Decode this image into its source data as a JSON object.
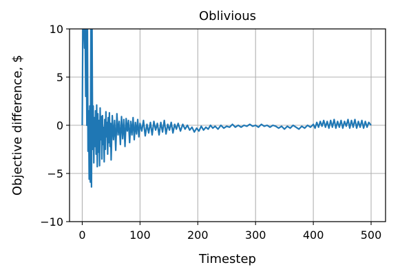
{
  "chart_data": {
    "type": "line",
    "title": "Oblivious",
    "xlabel": "Timestep",
    "ylabel": "Objective difference, $",
    "xlim": [
      -22,
      525
    ],
    "ylim": [
      -10,
      10
    ],
    "xticks": [
      0,
      100,
      200,
      300,
      400,
      500
    ],
    "yticks": [
      -10,
      -5,
      0,
      5,
      10
    ],
    "xtick_labels": [
      "0",
      "100",
      "200",
      "300",
      "400",
      "500"
    ],
    "ytick_labels": [
      "−10",
      "−5",
      "0",
      "5",
      "10"
    ],
    "grid": true,
    "line_color": "#1f77b4",
    "series": [
      {
        "values": [
          [
            0,
            0.0
          ],
          [
            1,
            10.0
          ],
          [
            2,
            10.0
          ],
          [
            3,
            10.0
          ],
          [
            4,
            8.0
          ],
          [
            5,
            10.0
          ],
          [
            6,
            3.0
          ],
          [
            7,
            10.0
          ],
          [
            8,
            0.0
          ],
          [
            9,
            10.0
          ],
          [
            10,
            -2.7
          ],
          [
            11,
            1.5
          ],
          [
            12,
            -5.6
          ],
          [
            13,
            2.0
          ],
          [
            14,
            -5.9
          ],
          [
            15,
            10.0
          ],
          [
            16,
            -6.4
          ],
          [
            17,
            10.0
          ],
          [
            18,
            -2.5
          ],
          [
            19,
            2.0
          ],
          [
            20,
            -3.9
          ],
          [
            21,
            0.8
          ],
          [
            22,
            -2.2
          ],
          [
            23,
            1.5
          ],
          [
            24,
            -3.0
          ],
          [
            25,
            2.1
          ],
          [
            26,
            -4.3
          ],
          [
            27,
            1.2
          ],
          [
            28,
            -2.8
          ],
          [
            29,
            0.5
          ],
          [
            30,
            -4.2
          ],
          [
            31,
            1.8
          ],
          [
            32,
            -1.5
          ],
          [
            33,
            0.9
          ],
          [
            34,
            -3.5
          ],
          [
            35,
            1.0
          ],
          [
            36,
            -2.0
          ],
          [
            37,
            -0.2
          ],
          [
            38,
            -3.8
          ],
          [
            39,
            0.6
          ],
          [
            40,
            -2.5
          ],
          [
            41,
            1.4
          ],
          [
            42,
            -1.2
          ],
          [
            43,
            0.3
          ],
          [
            44,
            -3.0
          ],
          [
            45,
            0.8
          ],
          [
            46,
            -1.8
          ],
          [
            47,
            1.3
          ],
          [
            48,
            -2.2
          ],
          [
            49,
            0.2
          ],
          [
            50,
            -3.6
          ],
          [
            52,
            1.0
          ],
          [
            54,
            -1.5
          ],
          [
            56,
            0.5
          ],
          [
            58,
            -2.6
          ],
          [
            60,
            1.2
          ],
          [
            62,
            -1.0
          ],
          [
            64,
            0.4
          ],
          [
            66,
            -2.0
          ],
          [
            68,
            0.9
          ],
          [
            70,
            -1.4
          ],
          [
            72,
            0.6
          ],
          [
            74,
            -2.2
          ],
          [
            76,
            0.7
          ],
          [
            78,
            -0.6
          ],
          [
            80,
            0.5
          ],
          [
            82,
            -1.8
          ],
          [
            84,
            0.4
          ],
          [
            86,
            -1.0
          ],
          [
            88,
            0.8
          ],
          [
            90,
            -1.5
          ],
          [
            92,
            0.3
          ],
          [
            94,
            -0.9
          ],
          [
            96,
            0.6
          ],
          [
            98,
            -1.2
          ],
          [
            100,
            0.2
          ],
          [
            103,
            -0.6
          ],
          [
            106,
            0.5
          ],
          [
            109,
            -1.1
          ],
          [
            112,
            0.1
          ],
          [
            115,
            -0.8
          ],
          [
            118,
            0.3
          ],
          [
            121,
            -1.0
          ],
          [
            124,
            0.4
          ],
          [
            127,
            -0.5
          ],
          [
            130,
            0.2
          ],
          [
            133,
            -1.0
          ],
          [
            136,
            0.3
          ],
          [
            139,
            -0.7
          ],
          [
            142,
            0.5
          ],
          [
            145,
            -0.9
          ],
          [
            148,
            0.1
          ],
          [
            151,
            -0.5
          ],
          [
            154,
            0.3
          ],
          [
            157,
            -0.8
          ],
          [
            160,
            0.1
          ],
          [
            163,
            -0.4
          ],
          [
            166,
            0.2
          ],
          [
            170,
            -0.6
          ],
          [
            174,
            0.1
          ],
          [
            178,
            -0.4
          ],
          [
            182,
            0.0
          ],
          [
            186,
            -0.5
          ],
          [
            190,
            -0.2
          ],
          [
            194,
            -0.7
          ],
          [
            198,
            -0.3
          ],
          [
            202,
            -0.6
          ],
          [
            206,
            -0.1
          ],
          [
            210,
            -0.5
          ],
          [
            214,
            -0.2
          ],
          [
            218,
            -0.4
          ],
          [
            222,
            0.0
          ],
          [
            226,
            -0.3
          ],
          [
            230,
            -0.1
          ],
          [
            235,
            -0.4
          ],
          [
            240,
            0.0
          ],
          [
            245,
            -0.3
          ],
          [
            250,
            -0.1
          ],
          [
            255,
            -0.2
          ],
          [
            260,
            0.1
          ],
          [
            265,
            -0.2
          ],
          [
            270,
            0.0
          ],
          [
            275,
            -0.2
          ],
          [
            280,
            0.0
          ],
          [
            285,
            -0.1
          ],
          [
            290,
            0.1
          ],
          [
            295,
            -0.1
          ],
          [
            300,
            0.0
          ],
          [
            305,
            -0.2
          ],
          [
            310,
            0.1
          ],
          [
            315,
            -0.1
          ],
          [
            320,
            0.0
          ],
          [
            325,
            -0.2
          ],
          [
            330,
            0.0
          ],
          [
            335,
            -0.1
          ],
          [
            340,
            -0.3
          ],
          [
            345,
            -0.1
          ],
          [
            350,
            -0.4
          ],
          [
            355,
            -0.1
          ],
          [
            360,
            -0.3
          ],
          [
            365,
            0.0
          ],
          [
            370,
            -0.2
          ],
          [
            375,
            -0.4
          ],
          [
            380,
            -0.1
          ],
          [
            385,
            -0.3
          ],
          [
            390,
            0.0
          ],
          [
            395,
            -0.2
          ],
          [
            400,
            0.1
          ],
          [
            403,
            -0.3
          ],
          [
            406,
            0.3
          ],
          [
            409,
            -0.2
          ],
          [
            412,
            0.4
          ],
          [
            415,
            -0.1
          ],
          [
            418,
            0.5
          ],
          [
            421,
            -0.2
          ],
          [
            424,
            0.4
          ],
          [
            427,
            -0.3
          ],
          [
            430,
            0.5
          ],
          [
            433,
            -0.2
          ],
          [
            436,
            0.6
          ],
          [
            439,
            -0.3
          ],
          [
            442,
            0.4
          ],
          [
            445,
            -0.2
          ],
          [
            448,
            0.5
          ],
          [
            451,
            -0.3
          ],
          [
            454,
            0.4
          ],
          [
            457,
            -0.1
          ],
          [
            460,
            0.6
          ],
          [
            463,
            -0.3
          ],
          [
            466,
            0.5
          ],
          [
            469,
            -0.2
          ],
          [
            472,
            0.6
          ],
          [
            475,
            -0.3
          ],
          [
            478,
            0.4
          ],
          [
            481,
            -0.2
          ],
          [
            484,
            0.5
          ],
          [
            487,
            -0.3
          ],
          [
            490,
            0.4
          ],
          [
            493,
            -0.2
          ],
          [
            496,
            0.3
          ],
          [
            500,
            0.0
          ]
        ]
      }
    ]
  }
}
